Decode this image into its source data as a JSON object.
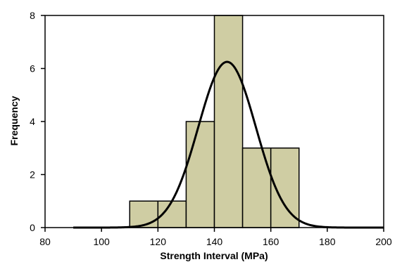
{
  "chart_data": {
    "type": "bar",
    "subtype": "histogram",
    "xlabel": "Strength Interval (MPa)",
    "ylabel": "Frequency",
    "xlim": [
      80,
      200
    ],
    "ylim": [
      0,
      8
    ],
    "x_ticks": [
      80,
      100,
      120,
      140,
      160,
      180,
      200
    ],
    "y_ticks": [
      0,
      2,
      4,
      6,
      8
    ],
    "bins": [
      {
        "start": 110,
        "end": 120,
        "count": 1
      },
      {
        "start": 120,
        "end": 130,
        "count": 1
      },
      {
        "start": 130,
        "end": 140,
        "count": 4
      },
      {
        "start": 140,
        "end": 150,
        "count": 8
      },
      {
        "start": 150,
        "end": 160,
        "count": 3
      },
      {
        "start": 160,
        "end": 170,
        "count": 3
      }
    ],
    "normal_curve": {
      "mean": 144.5,
      "sd": 10.2,
      "peak": 6.25
    },
    "colors": {
      "bar_fill": "#CFCDA3",
      "bar_stroke": "#000000",
      "curve": "#000000",
      "axis": "#000000"
    },
    "grid": false,
    "legend": "none"
  }
}
